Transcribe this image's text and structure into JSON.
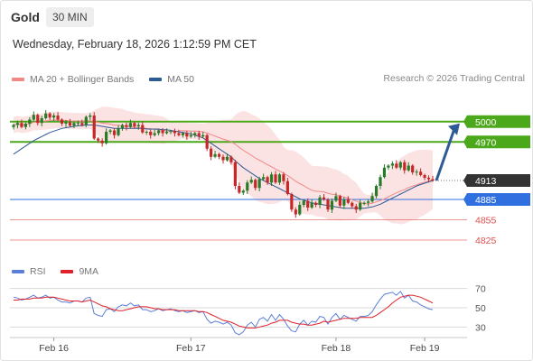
{
  "header": {
    "title": "Gold",
    "timeframe": "30 MIN",
    "datetime": "Wednesday, February 18, 2026 1:12:59 PM CET"
  },
  "legend": {
    "items": [
      {
        "label": "MA 20 + Bollinger Bands",
        "color": "#f0888a"
      },
      {
        "label": "MA 50",
        "color": "#2e5a96"
      }
    ],
    "credit": "Research © 2026 Trading Central"
  },
  "rsi_legend": {
    "items": [
      {
        "label": "RSI",
        "color": "#5b7fd8"
      },
      {
        "label": "9MA",
        "color": "#e0202a"
      }
    ]
  },
  "colors": {
    "up": "#2a7a2a",
    "down": "#c62828",
    "band_fill": "#fbd9da",
    "ma20": "#f0888a",
    "ma50": "#2e5a96",
    "target": "#4ca81b",
    "pivot": "#2f6fe0",
    "support": "#e05050",
    "last": "#333333",
    "arrow": "#2e5a96"
  },
  "chart_data": {
    "type": "candlestick",
    "title": "Gold",
    "timeframe": "30 MIN",
    "x_ticks": [
      "Feb 16",
      "Feb 17",
      "Feb 18",
      "Feb 19"
    ],
    "ylim": [
      4805,
      5045
    ],
    "last_price": 4913,
    "price_levels": [
      {
        "value": 5000,
        "role": "target",
        "label": "5000"
      },
      {
        "value": 4970,
        "role": "target",
        "label": "4970"
      },
      {
        "value": 4913,
        "role": "last",
        "label": "4913"
      },
      {
        "value": 4885,
        "role": "pivot",
        "label": "4885"
      },
      {
        "value": 4855,
        "role": "support",
        "label": "4855"
      },
      {
        "value": 4825,
        "role": "support",
        "label": "4825"
      }
    ],
    "closes": [
      4995,
      4998,
      4992,
      4997,
      5003,
      5010,
      4998,
      5005,
      5012,
      5006,
      5009,
      5003,
      4997,
      4999,
      4994,
      4998,
      4998,
      4995,
      5007,
      5009,
      4975,
      4972,
      4968,
      4985,
      4987,
      4980,
      4990,
      4995,
      4992,
      4998,
      4993,
      4995,
      4984,
      4985,
      4980,
      4983,
      4987,
      4983,
      4985,
      4986,
      4983,
      4980,
      4983,
      4978,
      4980,
      4983,
      4978,
      4980,
      4960,
      4948,
      4952,
      4948,
      4943,
      4948,
      4940,
      4905,
      4895,
      4898,
      4910,
      4914,
      4902,
      4915,
      4918,
      4910,
      4922,
      4910,
      4922,
      4912,
      4893,
      4870,
      4863,
      4877,
      4883,
      4873,
      4880,
      4877,
      4888,
      4885,
      4870,
      4883,
      4890,
      4876,
      4885,
      4880,
      4875,
      4870,
      4880,
      4880,
      4882,
      4890,
      4905,
      4918,
      4932,
      4935,
      4938,
      4932,
      4940,
      4928,
      4935,
      4925,
      4926,
      4921,
      4917,
      4915,
      4913
    ],
    "ma50": [
      4952,
      4956,
      4960,
      4964,
      4968,
      4972,
      4975,
      4978,
      4981,
      4984,
      4986,
      4988,
      4990,
      4991,
      4992,
      4993,
      4994,
      4994,
      4995,
      4995,
      4995,
      4994,
      4993,
      4992,
      4991,
      4990,
      4990,
      4990,
      4990,
      4990,
      4990,
      4990,
      4990,
      4989,
      4989,
      4989,
      4989,
      4988,
      4988,
      4987,
      4986,
      4985,
      4984,
      4983,
      4982,
      4980,
      4978,
      4976,
      4972,
      4968,
      4964,
      4960,
      4956,
      4952,
      4948,
      4942,
      4937,
      4932,
      4928,
      4924,
      4920,
      4916,
      4913,
      4910,
      4907,
      4904,
      4901,
      4898,
      4895,
      4892,
      4889,
      4886,
      4884,
      4882,
      4880,
      4879,
      4878,
      4877,
      4876,
      4875,
      4874,
      4873,
      4872,
      4872,
      4872,
      4872,
      4872,
      4872,
      4873,
      4874,
      4876,
      4878,
      4881,
      4884,
      4887,
      4890,
      4893,
      4896,
      4899,
      4902,
      4905,
      4907,
      4909,
      4911,
      4913
    ],
    "rsi_ylim": [
      20,
      80
    ],
    "rsi_levels": [
      70,
      50,
      30
    ],
    "rsi": [
      61,
      60,
      58,
      59,
      61,
      63,
      60,
      61,
      63,
      60,
      61,
      58,
      56,
      56,
      55,
      57,
      57,
      56,
      60,
      61,
      44,
      42,
      41,
      48,
      49,
      46,
      51,
      53,
      52,
      55,
      52,
      53,
      48,
      48,
      46,
      47,
      49,
      47,
      48,
      49,
      47,
      46,
      47,
      45,
      46,
      47,
      45,
      46,
      38,
      34,
      36,
      35,
      33,
      35,
      32,
      24,
      22,
      25,
      32,
      35,
      30,
      38,
      40,
      36,
      43,
      37,
      43,
      38,
      31,
      26,
      25,
      33,
      37,
      32,
      36,
      35,
      41,
      40,
      33,
      40,
      44,
      38,
      42,
      40,
      38,
      36,
      41,
      41,
      42,
      46,
      53,
      59,
      64,
      65,
      66,
      63,
      67,
      60,
      63,
      57,
      56,
      53,
      51,
      49,
      48
    ],
    "rsi_9ma": [
      58,
      58,
      59,
      59,
      59,
      60,
      60,
      60,
      61,
      61,
      61,
      60,
      59,
      58,
      57,
      57,
      57,
      56,
      57,
      58,
      56,
      54,
      52,
      51,
      49,
      48,
      47,
      47,
      48,
      49,
      50,
      51,
      51,
      51,
      50,
      49,
      49,
      48,
      48,
      48,
      48,
      47,
      47,
      47,
      47,
      47,
      46,
      46,
      45,
      43,
      41,
      39,
      37,
      36,
      35,
      33,
      31,
      30,
      29,
      29,
      29,
      30,
      31,
      32,
      34,
      35,
      37,
      37,
      37,
      35,
      34,
      33,
      33,
      32,
      32,
      33,
      34,
      36,
      35,
      36,
      37,
      38,
      39,
      39,
      39,
      39,
      40,
      40,
      40,
      40,
      42,
      45,
      48,
      51,
      55,
      58,
      61,
      62,
      63,
      63,
      62,
      61,
      59,
      57,
      55
    ]
  }
}
